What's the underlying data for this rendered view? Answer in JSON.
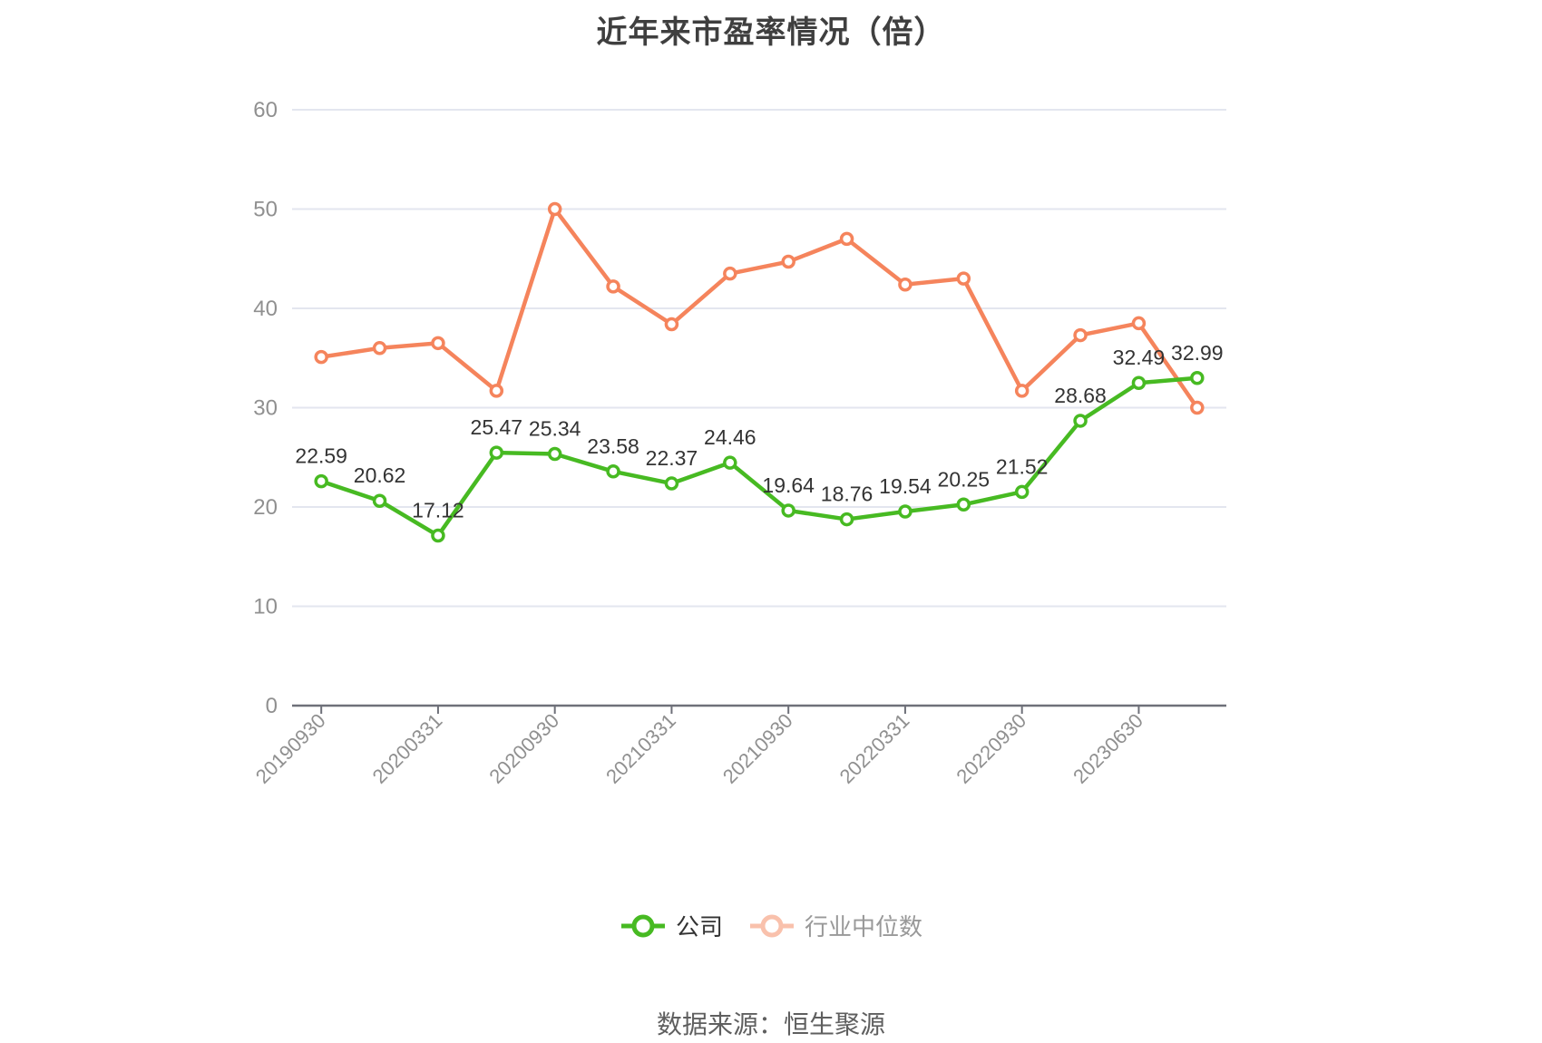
{
  "title": "近年来市盈率情况（倍）",
  "source_note": "数据来源：恒生聚源",
  "colors": {
    "company_series": "#47ba22",
    "industry_series": "#f5845c",
    "value_label_text": "#333333",
    "axis_line": "#6e7079",
    "axis_tick_label": "#909090",
    "gridline": "#e3e6ef",
    "title_text": "#3f3f3f",
    "legend_company_text": "#333333",
    "legend_industry_text": "#999999",
    "source_text": "#5f5f5f",
    "background": "#ffffff"
  },
  "chart_data": {
    "type": "line",
    "title": "近年来市盈率情况（倍）",
    "xlabel": "",
    "ylabel": "",
    "ylim": [
      0,
      60
    ],
    "y_ticks": [
      0,
      10,
      20,
      30,
      40,
      50,
      60
    ],
    "grid": "horizontal-only",
    "legend_position": "bottom",
    "n_points": 16,
    "x_tick_labels": [
      "20190930",
      "20200331",
      "20200930",
      "20210331",
      "20210930",
      "20220331",
      "20220930",
      "20230630"
    ],
    "x_tick_point_indices": [
      0,
      2,
      4,
      6,
      8,
      10,
      12,
      14
    ],
    "series": [
      {
        "name": "公司",
        "color": "#47ba22",
        "marker": "hollow-circle",
        "labels_shown": true,
        "values": [
          22.59,
          20.62,
          17.12,
          25.47,
          25.34,
          23.58,
          22.37,
          24.46,
          19.64,
          18.76,
          19.54,
          20.25,
          21.52,
          28.68,
          32.49,
          32.99
        ],
        "value_labels": [
          "22.59",
          "20.62",
          "17.12",
          "25.47",
          "25.34",
          "23.58",
          "22.37",
          "24.46",
          "19.64",
          "18.76",
          "19.54",
          "20.25",
          "21.52",
          "28.68",
          "32.49",
          "32.99"
        ]
      },
      {
        "name": "行业中位数",
        "color": "#f5845c",
        "marker": "hollow-circle",
        "labels_shown": false,
        "values_estimated": true,
        "values": [
          35.1,
          36.0,
          36.5,
          31.7,
          50.0,
          42.2,
          38.4,
          43.5,
          44.7,
          47.0,
          42.4,
          43.0,
          31.7,
          37.3,
          38.5,
          30.0
        ]
      }
    ]
  }
}
